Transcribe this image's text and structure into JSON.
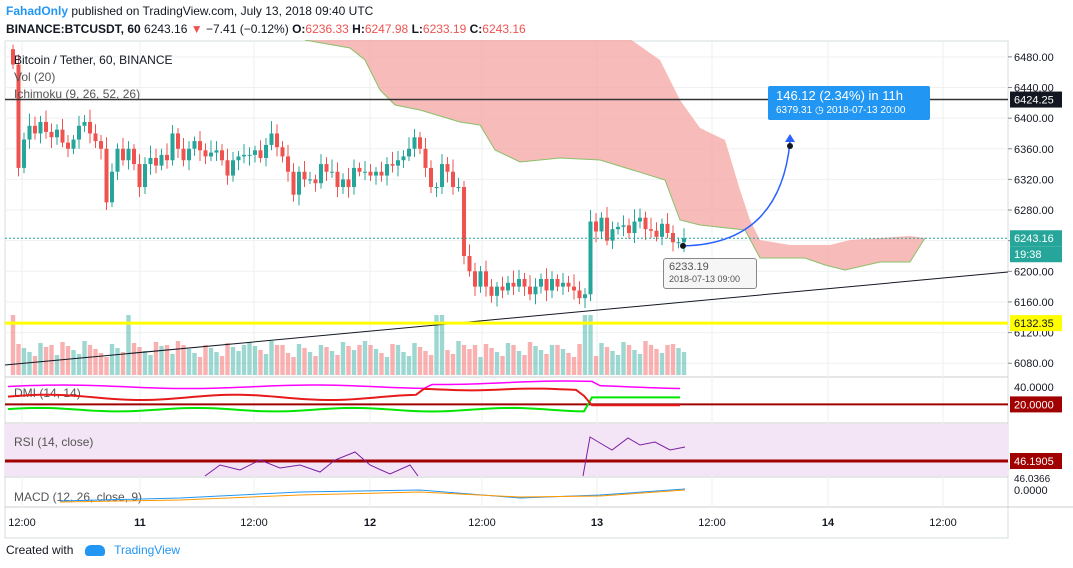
{
  "header": {
    "author": "FahadOnly",
    "published": "published on TradingView.com, July 13, 2018 09:40 UTC",
    "symbol": "BINANCE:BTCUSDT, 60",
    "last": "6243.16",
    "arrow": "▼",
    "change": "−7.41 (−0.12%)",
    "o_label": "O:",
    "o_value": "6236.33",
    "h_label": "H:",
    "h_value": "6247.98",
    "l_label": "L:",
    "l_value": "6233.19",
    "c_label": "C:",
    "c_value": "6243.16"
  },
  "footer": {
    "created_with": "Created with",
    "brand": "TradingView"
  },
  "colors": {
    "up": "#26a69a",
    "down": "#ef5350",
    "cloud": "#f4a6a2",
    "hline": "#ffff00",
    "resistance": "#131722",
    "dmi_plus": "#00e600",
    "dmi_minus": "#e61a1a",
    "adx": "#ff00ff",
    "rsi_bg": "#f3e5f5",
    "rsi_line": "#7b1fa2",
    "projection": "#2962ff"
  },
  "chart_data": {
    "type": "candlestick",
    "title": "Bitcoin / Tether, 60, BINANCE",
    "legend": [
      "Vol (20)",
      "Ichimoku (9, 26, 52, 26)"
    ],
    "x_ticks": [
      "12:00",
      "11",
      "12:00",
      "12",
      "12:00",
      "13",
      "12:00",
      "14",
      "12:00"
    ],
    "y_ticks": [
      6480,
      6440,
      6400,
      6360,
      6320,
      6280,
      6240,
      6200,
      6160,
      6120,
      6080
    ],
    "y_tick_labels": [
      "6480.00",
      "6440.00",
      "6400.00",
      "6360.00",
      "6320.00",
      "6280.00",
      "6240.00",
      "6200.00",
      "6160.00",
      "6120.00",
      "6080.00"
    ],
    "ylim": [
      6062,
      6502
    ],
    "closes": [
      6470,
      6335,
      6372,
      6390,
      6380,
      6395,
      6382,
      6375,
      6385,
      6368,
      6360,
      6372,
      6390,
      6395,
      6380,
      6370,
      6360,
      6290,
      6330,
      6360,
      6345,
      6360,
      6340,
      6310,
      6340,
      6348,
      6338,
      6352,
      6345,
      6380,
      6360,
      6345,
      6360,
      6370,
      6358,
      6350,
      6355,
      6358,
      6345,
      6325,
      6345,
      6350,
      6352,
      6352,
      6358,
      6348,
      6365,
      6380,
      6362,
      6350,
      6330,
      6300,
      6330,
      6320,
      6320,
      6315,
      6340,
      6330,
      6330,
      6310,
      6320,
      6310,
      6335,
      6330,
      6330,
      6325,
      6330,
      6325,
      6340,
      6338,
      6345,
      6350,
      6360,
      6375,
      6360,
      6335,
      6310,
      6310,
      6340,
      6330,
      6310,
      6310,
      6220,
      6200,
      6180,
      6200,
      6180,
      6168,
      6180,
      6175,
      6185,
      6180,
      6190,
      6180,
      6170,
      6180,
      6190,
      6175,
      6190,
      6180,
      6185,
      6180,
      6175,
      6165,
      6170,
      6265,
      6252,
      6270,
      6240,
      6255,
      6258,
      6260,
      6250,
      6265,
      6270,
      6255,
      6253,
      6245,
      6262,
      6250,
      6238,
      6238,
      6243.16
    ],
    "price_labels": {
      "resistance": "6424.25",
      "current": "6243.16",
      "countdown": "19:38",
      "support": "6132.35"
    },
    "horizontal_levels": [
      6424.25,
      6132.35
    ],
    "projection": {
      "text": "146.12 (2.34%) in 11h",
      "target": "6379.31",
      "target_time": "2018-07-13  20:00",
      "from_price": 6233.19,
      "to_price": 6379.31
    },
    "low_marker": {
      "price": "6233.19",
      "time": "2018-07-13 09:00"
    },
    "dmi": {
      "label": "DMI (14, 14)",
      "ticks": [
        "40.0000"
      ],
      "level_label": "20.0000",
      "level": 20,
      "ylim": [
        0,
        50
      ]
    },
    "rsi": {
      "label": "RSI (14, close)",
      "value_label": "46.1905",
      "second_label": "46.0366"
    },
    "macd": {
      "label": "MACD (12, 26, close, 9)",
      "value_label": "0.0000"
    }
  }
}
